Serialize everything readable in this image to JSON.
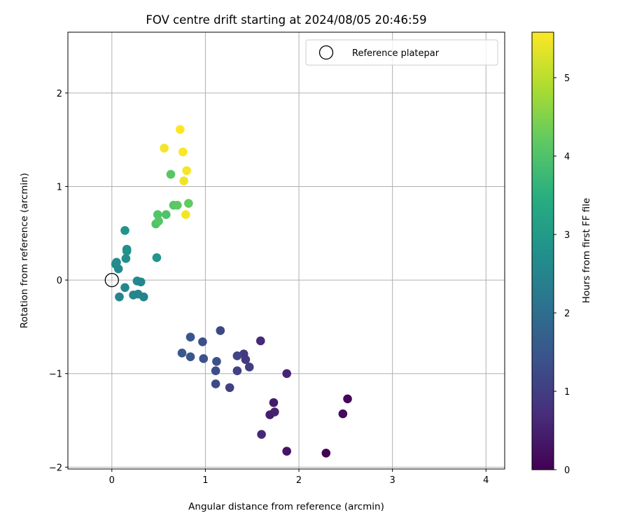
{
  "chart_data": {
    "type": "scatter",
    "title": "FOV centre drift starting at 2024/08/05 20:46:59",
    "xlabel": "Angular distance from reference (arcmin)",
    "ylabel": "Rotation from reference (arcmin)",
    "xlim": [
      -0.47,
      4.2
    ],
    "ylim": [
      -2.02,
      2.65
    ],
    "xticks": [
      0,
      1,
      2,
      3,
      4
    ],
    "yticks": [
      -2,
      -1,
      0,
      1,
      2
    ],
    "xtick_labels": [
      "0",
      "1",
      "2",
      "3",
      "4"
    ],
    "ytick_labels": [
      "−2",
      "−1",
      "0",
      "1",
      "2"
    ],
    "grid": true,
    "legend": {
      "placement": "top-right",
      "entries": [
        "Reference platepar"
      ]
    },
    "reference_point": {
      "name": "Reference platepar",
      "x": 0,
      "y": 0
    },
    "colorbar": {
      "label": "Hours from first FF file",
      "colormap": "viridis",
      "range": [
        0,
        5.58
      ],
      "ticks": [
        0,
        1,
        2,
        3,
        4,
        5
      ],
      "tick_labels": [
        "0",
        "1",
        "2",
        "3",
        "4",
        "5"
      ]
    },
    "points": [
      {
        "x": 2.29,
        "y": -1.85,
        "c": 0.0
      },
      {
        "x": 1.87,
        "y": -1.83,
        "c": 0.3
      },
      {
        "x": 2.47,
        "y": -1.43,
        "c": 0.15
      },
      {
        "x": 2.52,
        "y": -1.27,
        "c": 0.1
      },
      {
        "x": 1.6,
        "y": -1.65,
        "c": 0.6
      },
      {
        "x": 1.69,
        "y": -1.44,
        "c": 0.45
      },
      {
        "x": 1.74,
        "y": -1.41,
        "c": 0.5
      },
      {
        "x": 1.73,
        "y": -1.31,
        "c": 0.4
      },
      {
        "x": 1.87,
        "y": -1.0,
        "c": 0.55
      },
      {
        "x": 1.59,
        "y": -0.65,
        "c": 0.65
      },
      {
        "x": 1.26,
        "y": -1.15,
        "c": 1.05
      },
      {
        "x": 1.11,
        "y": -1.11,
        "c": 1.25
      },
      {
        "x": 1.11,
        "y": -0.97,
        "c": 1.3
      },
      {
        "x": 1.34,
        "y": -0.97,
        "c": 1.1
      },
      {
        "x": 1.12,
        "y": -0.87,
        "c": 1.35
      },
      {
        "x": 1.47,
        "y": -0.93,
        "c": 1.0
      },
      {
        "x": 1.43,
        "y": -0.85,
        "c": 0.95
      },
      {
        "x": 1.41,
        "y": -0.79,
        "c": 0.9
      },
      {
        "x": 1.34,
        "y": -0.81,
        "c": 1.15
      },
      {
        "x": 1.16,
        "y": -0.54,
        "c": 1.2
      },
      {
        "x": 0.98,
        "y": -0.84,
        "c": 1.4
      },
      {
        "x": 0.84,
        "y": -0.82,
        "c": 1.5
      },
      {
        "x": 0.75,
        "y": -0.78,
        "c": 1.55
      },
      {
        "x": 0.84,
        "y": -0.61,
        "c": 1.45
      },
      {
        "x": 0.97,
        "y": -0.66,
        "c": 1.35
      },
      {
        "x": 0.08,
        "y": -0.18,
        "c": 2.5
      },
      {
        "x": 0.14,
        "y": -0.08,
        "c": 2.55
      },
      {
        "x": 0.23,
        "y": -0.16,
        "c": 2.55
      },
      {
        "x": 0.28,
        "y": -0.15,
        "c": 2.5
      },
      {
        "x": 0.34,
        "y": -0.18,
        "c": 2.45
      },
      {
        "x": 0.27,
        "y": -0.01,
        "c": 2.6
      },
      {
        "x": 0.31,
        "y": -0.02,
        "c": 2.55
      },
      {
        "x": 0.07,
        "y": 0.12,
        "c": 2.6
      },
      {
        "x": 0.04,
        "y": 0.17,
        "c": 2.65
      },
      {
        "x": 0.05,
        "y": 0.19,
        "c": 2.7
      },
      {
        "x": 0.15,
        "y": 0.23,
        "c": 2.75
      },
      {
        "x": 0.16,
        "y": 0.31,
        "c": 2.8
      },
      {
        "x": 0.16,
        "y": 0.33,
        "c": 2.8
      },
      {
        "x": 0.14,
        "y": 0.53,
        "c": 2.85
      },
      {
        "x": 0.48,
        "y": 0.24,
        "c": 2.9
      },
      {
        "x": 0.47,
        "y": 0.6,
        "c": 4.0
      },
      {
        "x": 0.5,
        "y": 0.63,
        "c": 4.1
      },
      {
        "x": 0.49,
        "y": 0.7,
        "c": 4.05
      },
      {
        "x": 0.58,
        "y": 0.7,
        "c": 4.0
      },
      {
        "x": 0.66,
        "y": 0.8,
        "c": 4.1
      },
      {
        "x": 0.7,
        "y": 0.8,
        "c": 4.15
      },
      {
        "x": 0.82,
        "y": 0.82,
        "c": 4.2
      },
      {
        "x": 0.63,
        "y": 1.13,
        "c": 4.1
      },
      {
        "x": 0.79,
        "y": 0.7,
        "c": 5.5
      },
      {
        "x": 0.77,
        "y": 1.06,
        "c": 5.45
      },
      {
        "x": 0.8,
        "y": 1.17,
        "c": 5.5
      },
      {
        "x": 0.76,
        "y": 1.37,
        "c": 5.55
      },
      {
        "x": 0.56,
        "y": 1.41,
        "c": 5.5
      },
      {
        "x": 0.73,
        "y": 1.61,
        "c": 5.58
      }
    ]
  }
}
